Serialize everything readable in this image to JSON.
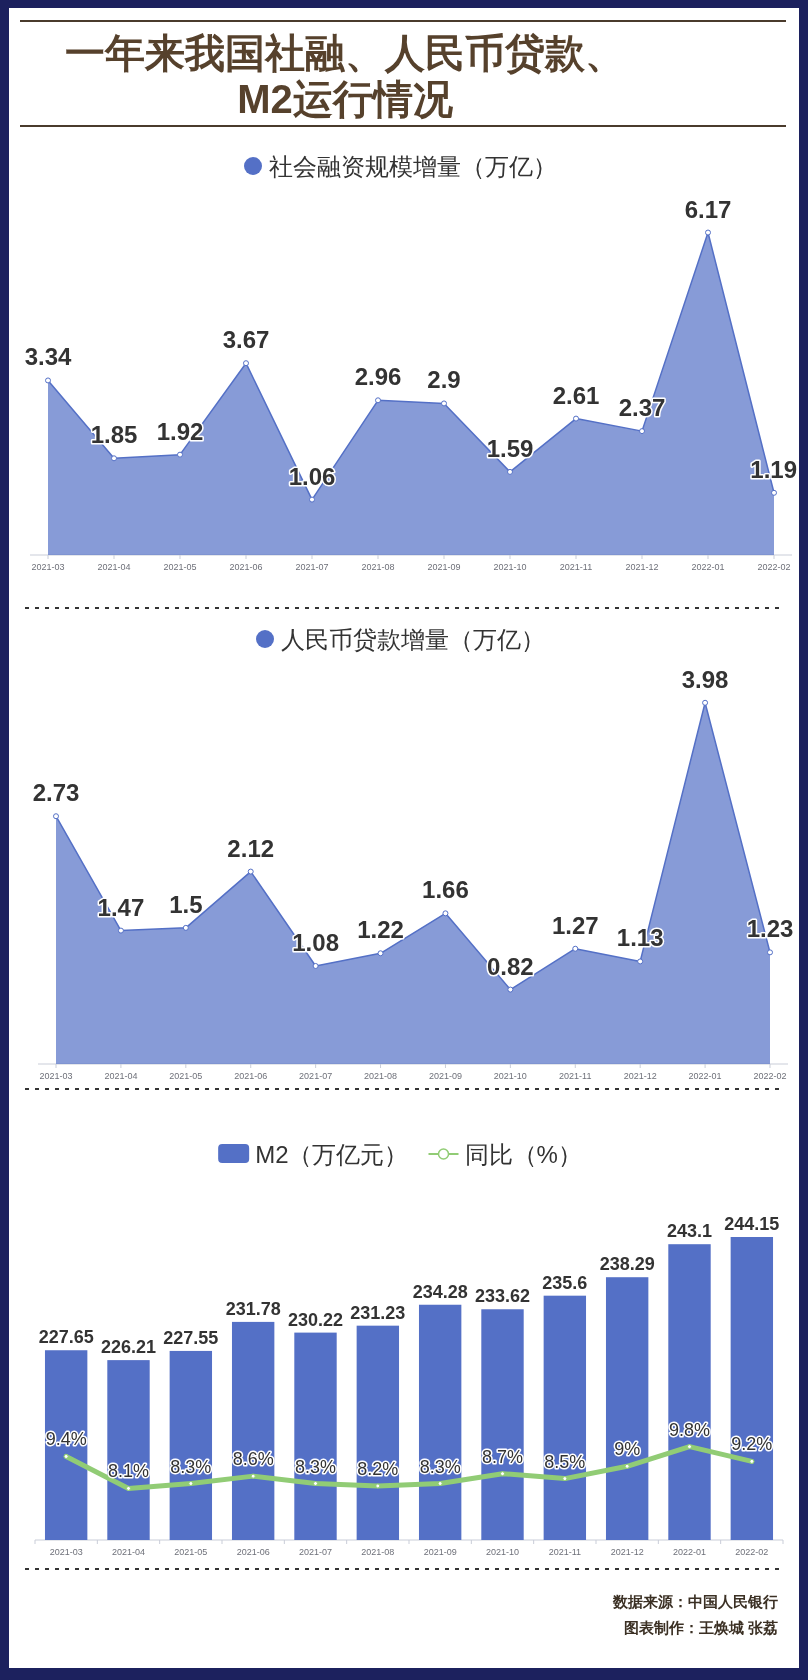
{
  "chart_data": [
    {
      "type": "area",
      "title": "一年来我国社融、人民币贷款、M2运行情况",
      "categories": [
        "2021-03",
        "2021-04",
        "2021-05",
        "2021-06",
        "2021-07",
        "2021-08",
        "2021-09",
        "2021-10",
        "2021-11",
        "2021-12",
        "2022-01",
        "2022-02"
      ],
      "series": [
        {
          "name": "社会融资规模增量（万亿）",
          "color": "#5470c6",
          "values": [
            3.34,
            1.85,
            1.92,
            3.67,
            1.06,
            2.96,
            2.9,
            1.59,
            2.61,
            2.37,
            6.17,
            1.19
          ]
        }
      ],
      "tick_labels": "x",
      "data_labels": true,
      "legend": "top",
      "marker": "circle"
    },
    {
      "type": "area",
      "categories": [
        "2021-03",
        "2021-04",
        "2021-05",
        "2021-06",
        "2021-07",
        "2021-08",
        "2021-09",
        "2021-10",
        "2021-11",
        "2021-12",
        "2022-01",
        "2022-02"
      ],
      "series": [
        {
          "name": "人民币贷款增量（万亿）",
          "color": "#5470c6",
          "values": [
            2.73,
            1.47,
            1.5,
            2.12,
            1.08,
            1.22,
            1.66,
            0.82,
            1.27,
            1.13,
            3.98,
            1.23
          ]
        }
      ],
      "tick_labels": "x",
      "data_labels": true,
      "legend": "top",
      "marker": "circle"
    },
    {
      "type": "bar",
      "categories": [
        "2021-03",
        "2021-04",
        "2021-05",
        "2021-06",
        "2021-07",
        "2021-08",
        "2021-09",
        "2021-10",
        "2021-11",
        "2021-12",
        "2022-01",
        "2022-02"
      ],
      "series": [
        {
          "name": "M2（万亿元）",
          "color": "#5470c6",
          "values": [
            227.65,
            226.21,
            227.55,
            231.78,
            230.22,
            231.23,
            234.28,
            233.62,
            235.6,
            238.29,
            243.1,
            244.15
          ]
        },
        {
          "name": "同比（%）",
          "type": "line",
          "axis": "y2",
          "color": "#91cc75",
          "values": [
            9.4,
            8.1,
            8.3,
            8.6,
            8.3,
            8.2,
            8.3,
            8.7,
            8.5,
            9,
            9.8,
            9.2
          ],
          "value_labels": [
            "9.4%",
            "8.1%",
            "8.3%",
            "8.6%",
            "8.3%",
            "8.2%",
            "8.3%",
            "8.7%",
            "8.5%",
            "9%",
            "9.8%",
            "9.2%"
          ]
        }
      ],
      "ylim": [
        200,
        244.15
      ],
      "tick_labels": "x",
      "data_labels": true,
      "legend": "top",
      "marker": "circle",
      "annotations": [
        "数据来源：中国人民银行",
        "图表制作：王焕城 张荔"
      ]
    }
  ]
}
